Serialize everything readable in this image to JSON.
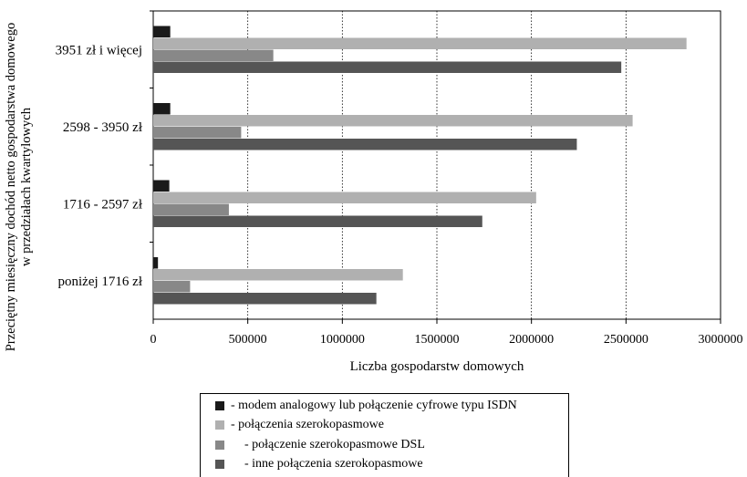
{
  "chart_data": {
    "type": "bar",
    "orientation": "horizontal",
    "categories": [
      "poniżej 1716 zł",
      "1716 - 2597 zł",
      "2598 - 3950 zł",
      "3951 zł i więcej"
    ],
    "series": [
      {
        "name": "- modem analogowy lub połączenie cyfrowe typu ISDN",
        "color": "#1a1a1a",
        "values": [
          25000,
          85000,
          90000,
          90000
        ]
      },
      {
        "name": "- połączenia szerokopasmowe",
        "color": "#b0b0b0",
        "values": [
          1320000,
          2025000,
          2535000,
          2820000
        ]
      },
      {
        "name": "- połączenie szerokopasmowe DSL",
        "color": "#888888",
        "values": [
          195000,
          400000,
          465000,
          635000
        ]
      },
      {
        "name": "- inne połączenia szerokopasmowe",
        "color": "#555555",
        "values": [
          1180000,
          1740000,
          2240000,
          2475000
        ]
      }
    ],
    "xlabel": "Liczba gospodarstw domowych",
    "ylabel_lines": [
      "Przeciętny miesięczny dochód netto gospodarstwa domowego",
      "w przedziałach kwartylowych"
    ],
    "xlim": [
      0,
      3000000
    ],
    "xticks": [
      "0",
      "500000",
      "1000000",
      "1500000",
      "2000000",
      "2500000",
      "3000000"
    ],
    "grid": "vertical dotted",
    "legend_position": "bottom"
  }
}
